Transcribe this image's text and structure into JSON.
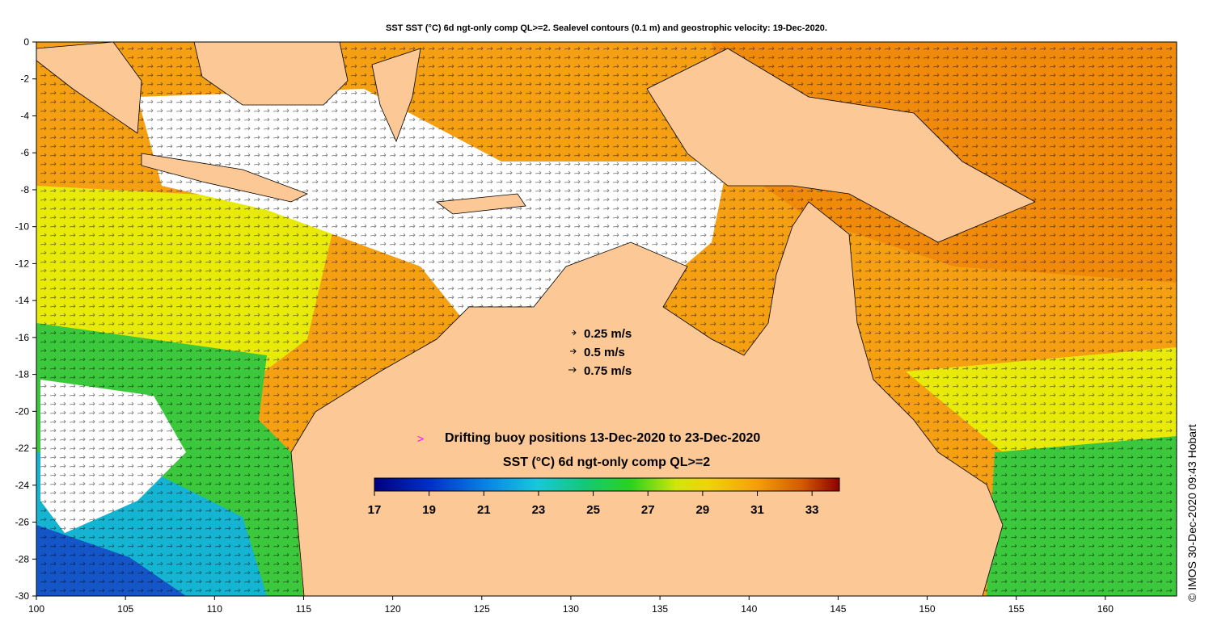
{
  "title": "SST SST (°C) 6d ngt-only comp QL>=2. Sealevel contours (0.1 m) and geostrophic velocity: 19-Dec-2020.",
  "axes": {
    "x_ticks": [
      100,
      105,
      110,
      115,
      120,
      125,
      130,
      135,
      140,
      145,
      150,
      155,
      160
    ],
    "y_ticks": [
      0,
      -2,
      -4,
      -6,
      -8,
      -10,
      -12,
      -14,
      -16,
      -18,
      -20,
      -22,
      -24,
      -26,
      -28,
      -30
    ],
    "lon_range": [
      100,
      164
    ],
    "lat_range": [
      -30,
      0
    ]
  },
  "velocity_legend": {
    "items": [
      {
        "label": "0.25 m/s",
        "speed": 0.25
      },
      {
        "label": "0.5 m/s",
        "speed": 0.5
      },
      {
        "label": "0.75 m/s",
        "speed": 0.75
      }
    ]
  },
  "buoy_legend": {
    "symbol": ">",
    "label": "Drifting buoy positions 13-Dec-2020 to 23-Dec-2020",
    "color": "#ff00ff"
  },
  "colorbar": {
    "title": "SST (°C) 6d ngt-only comp QL>=2",
    "min": 17,
    "max": 34,
    "tick_labels": [
      "17",
      "19",
      "21",
      "23",
      "25",
      "27",
      "29",
      "31",
      "33"
    ],
    "tick_values": [
      17,
      19,
      21,
      23,
      25,
      27,
      29,
      31,
      33
    ]
  },
  "credit": "© IMOS 30-Dec-2020 09:43 Hobart",
  "colors": {
    "land": "#fbc896",
    "warm": "#f5a012",
    "hot": "#f08a0a",
    "yellow": "#e8ea0a",
    "green": "#3cc83c",
    "cyan": "#14b4d2",
    "blue": "#1456c8",
    "no_data": "#ffffff"
  }
}
